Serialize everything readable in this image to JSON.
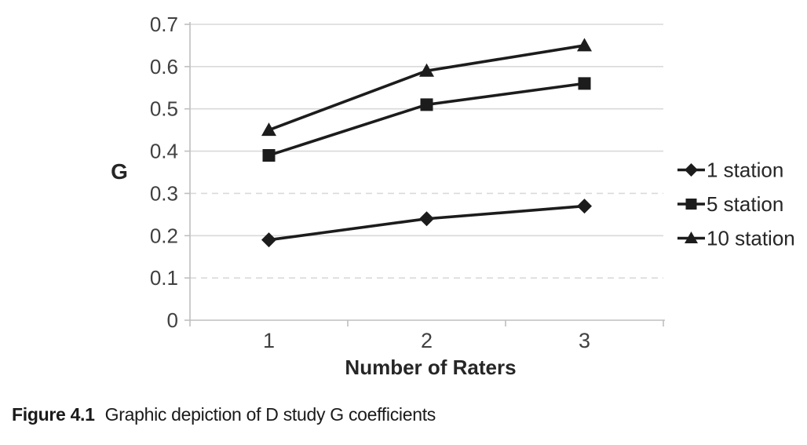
{
  "figure": {
    "caption_label": "Figure 4.1",
    "caption_text": "Graphic depiction of D study G coefficients"
  },
  "chart_data": {
    "type": "line",
    "title": "",
    "xlabel": "Number of Raters",
    "ylabel": "G",
    "categories": [
      "1",
      "2",
      "3"
    ],
    "x": [
      1,
      2,
      3
    ],
    "series": [
      {
        "name": "1 station",
        "marker": "diamond",
        "values": [
          0.19,
          0.24,
          0.27
        ]
      },
      {
        "name": "5 station",
        "marker": "square",
        "values": [
          0.39,
          0.51,
          0.56
        ]
      },
      {
        "name": "10 station",
        "marker": "triangle",
        "values": [
          0.45,
          0.59,
          0.65
        ]
      }
    ],
    "ylim": [
      0,
      0.7
    ],
    "ytick_step": 0.1,
    "ytick_labels": [
      "0",
      "0.1",
      "0.2",
      "0.3",
      "0.4",
      "0.5",
      "0.6",
      "0.7"
    ],
    "dashed_gridlines": [
      0.1,
      0.3
    ],
    "grid": true,
    "legend_position": "right",
    "colors": {
      "series": "#1c1c1c",
      "gridline": "#d9d9d9",
      "axis_line": "#bfbfbf",
      "tick_label": "#404040",
      "axis_title": "#262626",
      "legend_text": "#262626",
      "background": "#ffffff"
    }
  }
}
